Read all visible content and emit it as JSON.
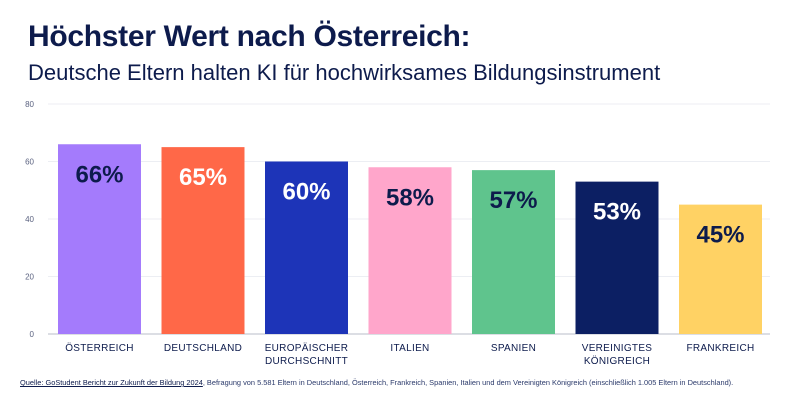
{
  "title": "Höchster Wert nach Österreich:",
  "subtitle": "Deutsche Eltern halten KI für hochwirksames Bildungsinstrument",
  "chart_data": {
    "type": "bar",
    "categories": [
      [
        "ÖSTERREICH"
      ],
      [
        "DEUTSCHLAND"
      ],
      [
        "EUROPÄISCHER",
        "DURCHSCHNITT"
      ],
      [
        "ITALIEN"
      ],
      [
        "SPANIEN"
      ],
      [
        "VEREINIGTES",
        "KÖNIGREICH"
      ],
      [
        "FRANKREICH"
      ]
    ],
    "values": [
      66,
      65,
      60,
      58,
      57,
      53,
      45
    ],
    "value_labels": [
      "66%",
      "65%",
      "60%",
      "58%",
      "57%",
      "53%",
      "45%"
    ],
    "colors": [
      "#a47bfc",
      "#ff6848",
      "#1d34b8",
      "#ffa6cb",
      "#5fc48d",
      "#0c1f63",
      "#ffd264"
    ],
    "label_colors": [
      "#0d1b4c",
      "#ffffff",
      "#ffffff",
      "#0d1b4c",
      "#0d1b4c",
      "#ffffff",
      "#0d1b4c"
    ],
    "yticks": [
      0,
      20,
      40,
      60,
      80
    ],
    "ylim": [
      0,
      80
    ],
    "grid": true,
    "xlabel": "",
    "ylabel": ""
  },
  "source": {
    "link_text": "Quelle: GoStudent Bericht zur Zukunft der Bildung 2024",
    "text": ", Befragung von 5.581 Eltern in Deutschland, Österreich, Frankreich, Spanien, Italien und dem Vereinigten Königreich (einschließlich 1.005 Eltern in Deutschland)."
  }
}
